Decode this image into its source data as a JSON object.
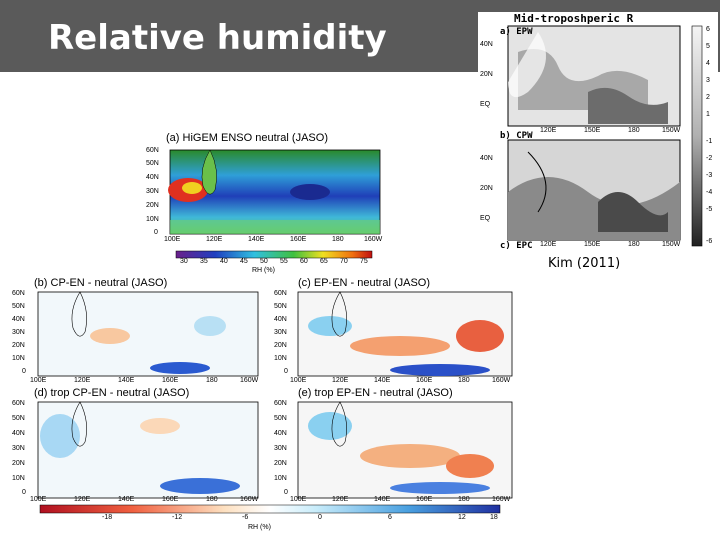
{
  "slide": {
    "title": "Relative humidity",
    "citation": "Kim (2011)"
  },
  "right_figure": {
    "title": "Mid-troposhperic R",
    "panels": [
      {
        "label": "a) EPW",
        "lat_ticks": [
          "40N",
          "20N",
          "EQ"
        ],
        "lon_ticks": [
          "120E",
          "150E",
          "180",
          "150W"
        ]
      },
      {
        "label": "b) CPW",
        "lat_ticks": [
          "40N",
          "20N",
          "EQ"
        ],
        "lon_ticks": [
          "120E",
          "150E",
          "180",
          "150W"
        ]
      },
      {
        "label": "c) EPC"
      }
    ],
    "colorbar_ticks": [
      "6",
      "5",
      "4",
      "3",
      "2",
      "1",
      "-1",
      "-2",
      "-3",
      "-4",
      "-5",
      "-6"
    ]
  },
  "left_figure": {
    "panel_a": {
      "title": "(a) HiGEM ENSO neutral (JASO)",
      "lat_ticks": [
        "60N",
        "50N",
        "40N",
        "30N",
        "20N",
        "10N",
        "0"
      ],
      "lon_ticks": [
        "100E",
        "120E",
        "140E",
        "160E",
        "180",
        "160W"
      ],
      "colorbar_ticks": [
        "30",
        "35",
        "40",
        "45",
        "50",
        "55",
        "60",
        "65",
        "70",
        "75"
      ],
      "colorbar_label": "RH (%)"
    },
    "panels": [
      {
        "title": "(b) CP-EN - neutral (JASO)"
      },
      {
        "title": "(c) EP-EN - neutral (JASO)"
      },
      {
        "title": "(d) trop CP-EN - neutral (JASO)"
      },
      {
        "title": "(e) trop EP-EN - neutral (JASO)"
      }
    ],
    "lat_ticks": [
      "60N",
      "50N",
      "40N",
      "30N",
      "20N",
      "10N",
      "0"
    ],
    "lon_ticks": [
      "100E",
      "120E",
      "140E",
      "160E",
      "180",
      "160W"
    ],
    "diff_colorbar_ticks": [
      "-18",
      "-12",
      "-6",
      "0",
      "6",
      "12",
      "18"
    ],
    "diff_colorbar_label": "RH (%)"
  },
  "colors": {
    "title_bar": "#5a5a5a",
    "title_text": "#ffffff"
  }
}
